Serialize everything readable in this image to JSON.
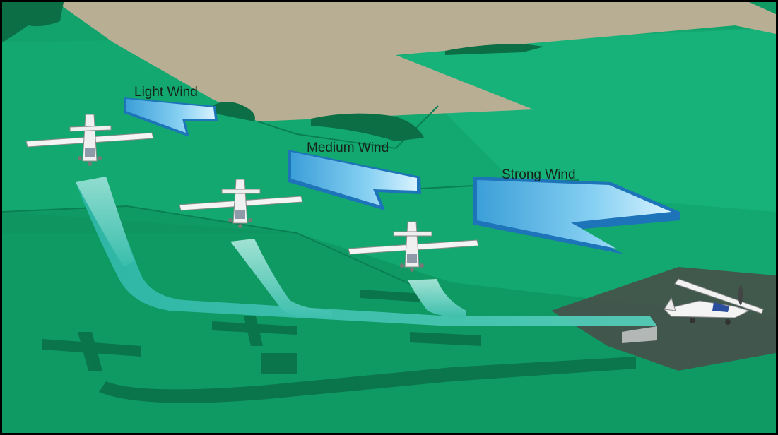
{
  "labels": {
    "light_wind": "Light Wind",
    "medium_wind": "Medium Wind",
    "strong_wind": "Strong Wind"
  },
  "colors": {
    "field_green": "#11a36b",
    "field_light": "#18b57a",
    "dirt_field": "#b7ae93",
    "runway": "#4a4a48",
    "wind_arrow": "#5ab8ea",
    "track": "#3fc1b0"
  }
}
